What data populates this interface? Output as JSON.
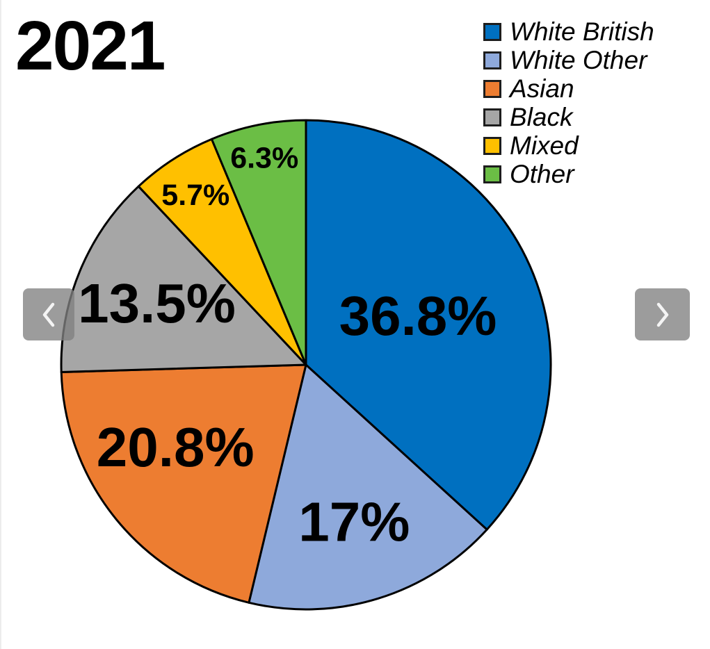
{
  "page": {
    "background": "#ffffff"
  },
  "carousel": {
    "prev_label": "Previous slide",
    "next_label": "Next slide"
  },
  "chart_data": {
    "type": "pie",
    "title": "2021",
    "start_angle_deg": 0,
    "direction": "clockwise",
    "legend_position": "top-right",
    "slice_border_color": "#000000",
    "series": [
      {
        "name": "White British",
        "value": 36.8,
        "label": "36.8%",
        "color": "#0070C0"
      },
      {
        "name": "White Other",
        "value": 17,
        "label": "17%",
        "color": "#8EA9DB"
      },
      {
        "name": "Asian",
        "value": 20.8,
        "label": "20.8%",
        "color": "#ED7D31"
      },
      {
        "name": "Black",
        "value": 13.5,
        "label": "13.5%",
        "color": "#A6A6A6"
      },
      {
        "name": "Mixed",
        "value": 5.7,
        "label": "5.7%",
        "color": "#FFC000"
      },
      {
        "name": "Other",
        "value": 6.3,
        "label": "6.3%",
        "color": "#6BBE45"
      }
    ]
  }
}
